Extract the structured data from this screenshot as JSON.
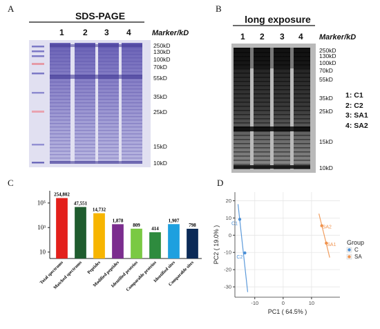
{
  "panels": {
    "a": {
      "letter": "A",
      "title": "SDS-PAGE",
      "lanes": [
        "1",
        "2",
        "3",
        "4"
      ],
      "marker_header": "Marker/kD",
      "markers": [
        "250kD",
        "130kD",
        "100kD",
        "70kD",
        "55kD",
        "35kD",
        "25kD",
        "15kD",
        "10kD"
      ]
    },
    "b": {
      "letter": "B",
      "title": "long exposure",
      "lanes": [
        "1",
        "2",
        "3",
        "4"
      ],
      "marker_header": "Marker/kD",
      "markers": [
        "250kD",
        "130kD",
        "100kD",
        "70kD",
        "55kD",
        "35kD",
        "25kD",
        "15kD",
        "10kD"
      ],
      "sample_key": [
        "1: C1",
        "2: C2",
        "3: SA1",
        "4: SA2"
      ]
    },
    "c": {
      "letter": "C"
    },
    "d": {
      "letter": "D"
    }
  },
  "chart_data": [
    {
      "type": "bar",
      "panel": "C",
      "yscale": "log",
      "ylim": [
        3,
        1000000
      ],
      "yticks": [
        "10",
        "10³",
        "10⁵"
      ],
      "categories": [
        "Total spectrums",
        "Matched spectrums",
        "Peptides",
        "Modified peptides",
        "Identified proteins",
        "Comparable proteins",
        "Identified sites",
        "Comparable sites"
      ],
      "values": [
        254802,
        47551,
        14732,
        1878,
        809,
        414,
        1907,
        798
      ],
      "value_labels": [
        "254,802",
        "47,551",
        "14,732",
        "1,878",
        "809",
        "414",
        "1,907",
        "798"
      ],
      "colors": [
        "#e3201b",
        "#1f5c2e",
        "#f7b500",
        "#7b2d8e",
        "#7ac943",
        "#2e8b3e",
        "#1ea0df",
        "#0b2a57"
      ]
    },
    {
      "type": "scatter",
      "panel": "D",
      "xlabel": "PC1 ( 64.5% )",
      "ylabel": "PC2 ( 19.0% )",
      "xlim": [
        -17,
        20
      ],
      "ylim": [
        -36,
        25
      ],
      "xticks": [
        -10,
        0,
        10
      ],
      "yticks": [
        -30,
        -20,
        -10,
        0,
        10,
        20
      ],
      "grid": true,
      "legend_title": "Group",
      "legend_position": "right",
      "series": [
        {
          "name": "C",
          "color": "#4a8fd6",
          "points": [
            {
              "label": "C1",
              "x": -15.3,
              "y": 9.2
            },
            {
              "label": "C2",
              "x": -13.5,
              "y": -10.3
            }
          ],
          "trend": [
            [
              -15.9,
              18
            ],
            [
              -12.5,
              -33
            ]
          ]
        },
        {
          "name": "SA",
          "color": "#f0934e",
          "points": [
            {
              "label": "SA2",
              "x": 13.6,
              "y": 5.5
            },
            {
              "label": "SA1",
              "x": 15.2,
              "y": -4.6
            }
          ],
          "trend": [
            [
              12.6,
              12.5
            ],
            [
              16.4,
              -13
            ]
          ]
        }
      ]
    }
  ]
}
